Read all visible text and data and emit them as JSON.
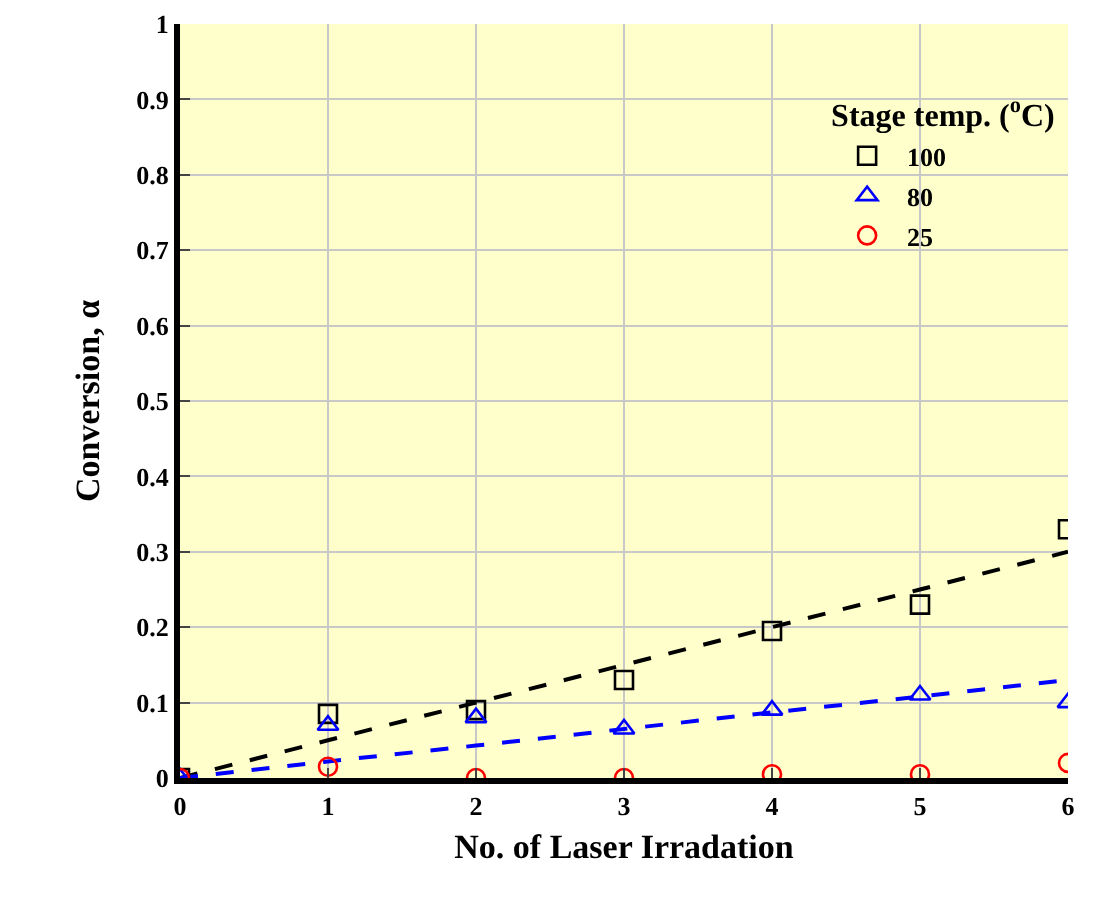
{
  "chart_data": {
    "type": "scatter",
    "xlabel": "No. of Laser Irradation",
    "ylabel": "Conversion, α",
    "legend_title": "Stage temp. ($^{o}$C)",
    "x": [
      0,
      1,
      2,
      3,
      4,
      5,
      6
    ],
    "series": [
      {
        "name": "100",
        "color": "#000000",
        "marker": "square",
        "values": [
          0,
          0.085,
          0.09,
          0.13,
          0.195,
          0.23,
          0.33
        ]
      },
      {
        "name": "80",
        "color": "#0000ff",
        "marker": "triangle",
        "values": [
          0,
          0.07,
          0.08,
          0.065,
          0.09,
          0.11,
          0.1
        ]
      },
      {
        "name": "25",
        "color": "#ff0000",
        "marker": "circle",
        "values": [
          0,
          0.015,
          0,
          0,
          0.005,
          0.005,
          0.02
        ]
      },
      {
        "type": "line",
        "color": "#000000",
        "line_style": "dashed",
        "values": [
          0,
          0.05,
          0.1,
          0.15,
          0.2,
          0.25,
          0.3
        ]
      },
      {
        "type": "line",
        "color": "#0000ff",
        "line_style": "dashed",
        "values": [
          0,
          0.022,
          0.043,
          0.065,
          0.087,
          0.108,
          0.13
        ]
      }
    ],
    "xlim": [
      0,
      6
    ],
    "xticks": [
      0,
      1,
      2,
      3,
      4,
      5,
      6
    ],
    "ylim": [
      0,
      1
    ],
    "yticks": [
      0,
      0.1,
      0.2,
      0.3,
      0.4,
      0.5,
      0.6,
      0.7,
      0.8,
      0.9,
      1
    ],
    "grid": true,
    "legend": "top right"
  }
}
